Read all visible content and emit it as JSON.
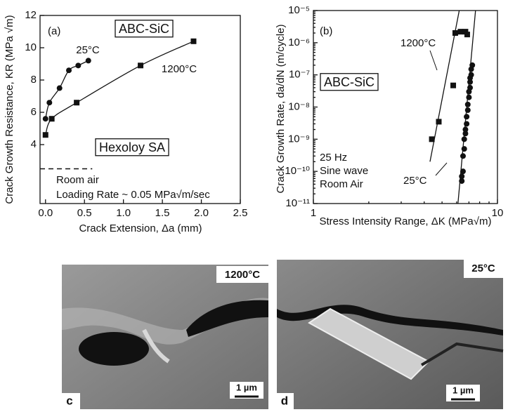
{
  "chart_data": [
    {
      "type": "line",
      "x_label": "Crack Extension, Δa (mm)",
      "y_label": "Crack Growth Resistance, KR (MPa √m)",
      "xlim": [
        -0.07,
        2.5
      ],
      "xticks": [
        {
          "value": 0,
          "label": "0.0"
        },
        0.5,
        {
          "value": 1,
          "label": "1.0"
        },
        1.5,
        {
          "value": 2,
          "label": "2.0"
        },
        2.5
      ],
      "ylim": [
        0.35,
        12
      ],
      "yticks": [
        4,
        6,
        8,
        10,
        12
      ],
      "annotations": [
        "(a)",
        "ABC-SiC",
        "Room air",
        "Loading Rate ~ 0.05 MPa√m/sec"
      ],
      "series": [
        {
          "name": "25°C",
          "color": "#111111",
          "marker": "circle",
          "x": [
            0,
            0.05,
            0.18,
            0.3,
            0.42,
            0.55
          ],
          "values": [
            5.6,
            6.6,
            7.5,
            8.6,
            8.9,
            9.2
          ]
        },
        {
          "name": "1200°C",
          "color": "#111111",
          "marker": "square",
          "x": [
            0,
            0.08,
            0.4,
            1.22,
            1.9
          ],
          "values": [
            4.6,
            5.6,
            6.6,
            8.9,
            10.4
          ]
        },
        {
          "name": "Hexoloy SA",
          "color": "#111111",
          "marker": "dash",
          "x": [
            -0.07,
            0.6
          ],
          "values": [
            2.5,
            2.5
          ]
        }
      ]
    },
    {
      "type": "scatter",
      "x_label": "Stress Intensity Range, ΔK (MPa√m)",
      "y_label": "Crack Growth Rate, da/dN (m/cycle)",
      "log_x": true,
      "log_y": true,
      "xlim": [
        1,
        10
      ],
      "xticks": [
        1,
        10
      ],
      "ylim": [
        1e-11,
        1e-05
      ],
      "yticks": [
        {
          "value": 1e-11,
          "label": "10⁻¹¹"
        },
        {
          "value": 1e-10,
          "label": "10⁻¹⁰"
        },
        {
          "value": 1e-09,
          "label": "10⁻⁹"
        },
        {
          "value": 1e-08,
          "label": "10⁻⁸"
        },
        {
          "value": 1e-07,
          "label": "10⁻⁷"
        },
        {
          "value": 1e-06,
          "label": "10⁻⁶"
        },
        {
          "value": 1e-05,
          "label": "10⁻⁵"
        }
      ],
      "annotations": [
        "(b)",
        "ABC-SiC",
        "25 Hz",
        "Sine wave",
        "Room Air"
      ],
      "series": [
        {
          "name": "1200°C",
          "color": "#111111",
          "marker": "square",
          "x": [
            4.4,
            4.8,
            5.75,
            5.9,
            6.3,
            6.7,
            6.85
          ],
          "values": [
            1e-09,
            3.5e-09,
            4.7e-08,
            2e-06,
            2.2e-06,
            2.2e-06,
            1.8e-06
          ],
          "fit_x": [
            4.3,
            6.2
          ],
          "fit_values": [
            2e-10,
            1e-05
          ]
        },
        {
          "name": "25°C",
          "color": "#111111",
          "marker": "circle",
          "x": [
            6.4,
            6.4,
            6.5,
            6.5,
            6.6,
            6.6,
            6.7,
            6.7,
            6.8,
            6.8,
            6.9,
            6.9,
            7.0,
            7.0,
            7.1,
            7.1,
            7.1,
            7.2,
            7.2,
            7.3
          ],
          "values": [
            5e-11,
            7e-11,
            1e-10,
            3e-10,
            5e-10,
            1e-09,
            1.5e-09,
            2e-09,
            3e-09,
            5e-09,
            8e-09,
            1.2e-08,
            2e-08,
            3e-08,
            4e-08,
            6e-08,
            8e-08,
            1e-07,
            1.5e-07,
            2e-07
          ],
          "fit_x": [
            6.1,
            7.6
          ],
          "fit_values": [
            1e-11,
            1e-05
          ]
        }
      ]
    }
  ],
  "images": [
    {
      "panel": "c",
      "temperature": "1200°C",
      "scale_bar": "1 µm"
    },
    {
      "panel": "d",
      "temperature": "25°C",
      "scale_bar": "1 µm"
    }
  ]
}
